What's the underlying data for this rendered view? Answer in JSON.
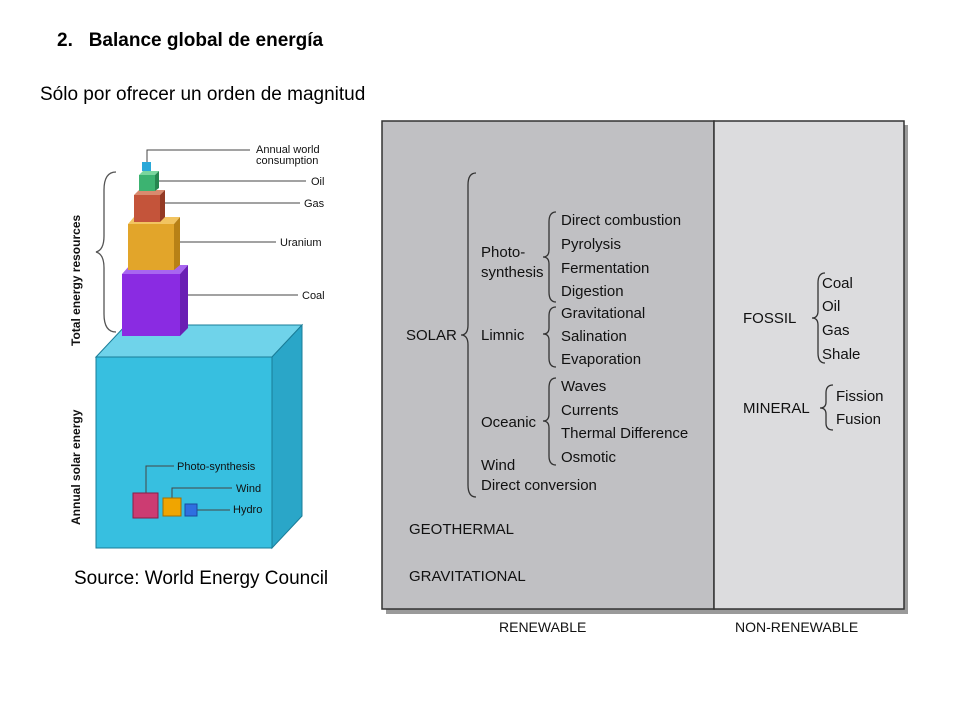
{
  "heading": {
    "number": "2.",
    "title": "Balance global de energía"
  },
  "subheading": "Sólo por ofrecer un orden de magnitud",
  "source": "Source: World Energy Council",
  "stack": {
    "vertical_labels": {
      "total": "Total energy resources",
      "annual": "Annual solar energy"
    },
    "labels": {
      "consumption": "Annual world consumption",
      "oil": "Oil",
      "gas": "Gas",
      "uranium": "Uranium",
      "coal": "Coal",
      "photosynthesis": "Photo-synthesis",
      "wind": "Wind",
      "hydro": "Hydro"
    },
    "colors": {
      "solar": "#37bfe0",
      "coal": "#8a2be2",
      "uranium": "#e2a52a",
      "gas": "#c4543a",
      "oil": "#3cb371",
      "consumption": "#2aa8d8",
      "photosynthesis": "#cc3c72",
      "wind": "#f0a500",
      "hydro": "#2f6fe0"
    }
  },
  "classification": {
    "solar": "SOLAR",
    "photo": {
      "label_line1": "Photo-",
      "label_line2": "synthesis",
      "items": [
        "Direct combustion",
        "Pyrolysis",
        "Fermentation",
        "Digestion"
      ]
    },
    "limnic": {
      "label": "Limnic",
      "items": [
        "Gravitational",
        "Salination",
        "Evaporation"
      ]
    },
    "oceanic": {
      "label": "Oceanic",
      "items": [
        "Waves",
        "Currents",
        "Thermal Difference",
        "Osmotic"
      ]
    },
    "wind": "Wind",
    "direct_conversion": "Direct conversion",
    "geothermal": "GEOTHERMAL",
    "gravitational": "GRAVITATIONAL",
    "fossil": {
      "label": "FOSSIL",
      "items": [
        "Coal",
        "Oil",
        "Gas",
        "Shale"
      ]
    },
    "mineral": {
      "label": "MINERAL",
      "items": [
        "Fission",
        "Fusion"
      ]
    },
    "footer": {
      "renewable": "RENEWABLE",
      "non_renewable": "NON-RENEWABLE"
    },
    "colors": {
      "renewable_bg": "#c0c0c3",
      "non_renewable_bg": "#dcdcde",
      "border": "#333333"
    }
  }
}
